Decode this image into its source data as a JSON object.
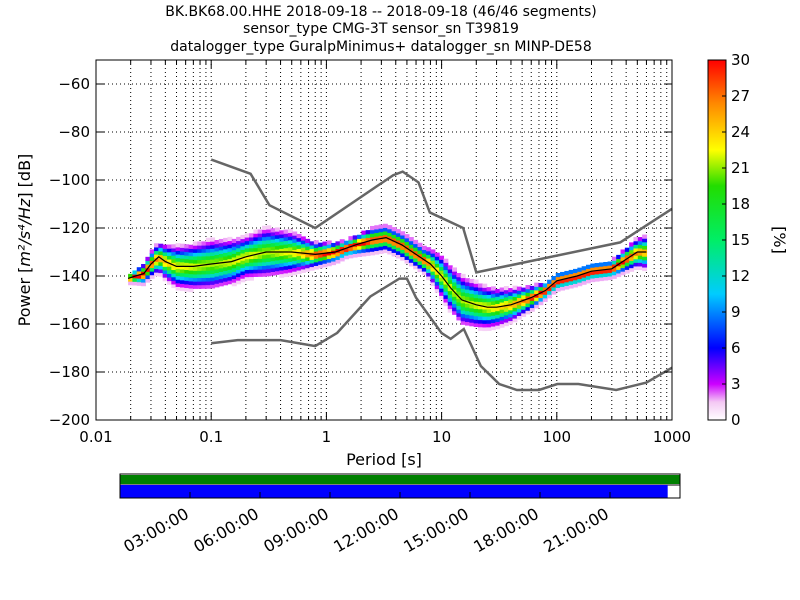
{
  "chart_data": {
    "type": "heatmap",
    "title_lines": [
      "BK.BK68.00.HHE   2018-09-18 -- 2018-09-18  (46/46 segments)",
      "sensor_type CMG-3T sensor_sn T39819",
      "datalogger_type GuralpMinimus+ datalogger_sn MINP-DE58"
    ],
    "xlabel": "Period [s]",
    "ylabel_prefix": "Power [",
    "ylabel_math": "m²/s⁴/Hz",
    "ylabel_suffix": "] [dB]",
    "x_scale": "log",
    "xlim": [
      0.01,
      1000
    ],
    "ylim": [
      -200,
      -50
    ],
    "x_tick_labels": [
      "0.01",
      "0.1",
      "1",
      "10",
      "100",
      "1000"
    ],
    "y_tick_labels": [
      "−60",
      "−80",
      "−100",
      "−120",
      "−140",
      "−160",
      "−180",
      "−200"
    ],
    "grid": true,
    "colorbar": {
      "label": "[%]",
      "range": [
        0,
        30
      ],
      "tick_labels": [
        "0",
        "3",
        "6",
        "9",
        "12",
        "15",
        "18",
        "21",
        "24",
        "27",
        "30"
      ]
    },
    "noise_models": [
      {
        "name": "NHNM",
        "points": [
          [
            0.1,
            -91.5
          ],
          [
            0.22,
            -97.4
          ],
          [
            0.32,
            -110.5
          ],
          [
            0.8,
            -120
          ],
          [
            3.8,
            -98
          ],
          [
            4.6,
            -96.5
          ],
          [
            6.3,
            -101
          ],
          [
            7.9,
            -113.5
          ],
          [
            15.4,
            -120
          ],
          [
            20,
            -138.5
          ],
          [
            354.8,
            -126
          ],
          [
            1000,
            -112
          ]
        ]
      },
      {
        "name": "NLNM",
        "points": [
          [
            0.1,
            -168
          ],
          [
            0.17,
            -166.7
          ],
          [
            0.4,
            -166.7
          ],
          [
            0.8,
            -169.2
          ],
          [
            1.24,
            -163.7
          ],
          [
            2.4,
            -148.6
          ],
          [
            4.3,
            -141.1
          ],
          [
            5,
            -141.1
          ],
          [
            6,
            -149
          ],
          [
            10,
            -163.8
          ],
          [
            12,
            -166.2
          ],
          [
            15.6,
            -162.1
          ],
          [
            21.9,
            -177.5
          ],
          [
            31.6,
            -185
          ],
          [
            45,
            -187.5
          ],
          [
            70,
            -187.5
          ],
          [
            101,
            -185
          ],
          [
            154,
            -185
          ],
          [
            328,
            -187.5
          ],
          [
            600,
            -184.4
          ],
          [
            1000,
            -178.2
          ]
        ]
      }
    ],
    "mode_curve": [
      [
        0.019,
        -141
      ],
      [
        0.022,
        -140
      ],
      [
        0.026,
        -139
      ],
      [
        0.03,
        -135
      ],
      [
        0.035,
        -132
      ],
      [
        0.04,
        -134
      ],
      [
        0.05,
        -136
      ],
      [
        0.07,
        -136
      ],
      [
        0.1,
        -135
      ],
      [
        0.15,
        -134
      ],
      [
        0.2,
        -132
      ],
      [
        0.3,
        -130
      ],
      [
        0.5,
        -130
      ],
      [
        0.8,
        -131
      ],
      [
        1.2,
        -130
      ],
      [
        1.8,
        -127
      ],
      [
        2.5,
        -125
      ],
      [
        3.3,
        -124
      ],
      [
        4.5,
        -127
      ],
      [
        6,
        -131
      ],
      [
        8,
        -135
      ],
      [
        10,
        -140
      ],
      [
        12,
        -145
      ],
      [
        15,
        -150
      ],
      [
        20,
        -152
      ],
      [
        25,
        -153
      ],
      [
        30,
        -153
      ],
      [
        40,
        -152
      ],
      [
        60,
        -149
      ],
      [
        80,
        -146
      ],
      [
        100,
        -142
      ],
      [
        150,
        -140
      ],
      [
        200,
        -138
      ],
      [
        300,
        -137
      ],
      [
        400,
        -133
      ],
      [
        500,
        -130
      ],
      [
        600,
        -130
      ]
    ],
    "spread_db": [
      [
        0.019,
        1
      ],
      [
        0.03,
        3
      ],
      [
        0.05,
        5
      ],
      [
        0.1,
        6
      ],
      [
        0.2,
        5
      ],
      [
        0.3,
        6
      ],
      [
        0.5,
        5
      ],
      [
        0.8,
        3
      ],
      [
        1.5,
        2
      ],
      [
        2.5,
        3
      ],
      [
        4,
        3
      ],
      [
        7,
        3
      ],
      [
        10,
        5
      ],
      [
        15,
        6
      ],
      [
        25,
        5
      ],
      [
        40,
        4
      ],
      [
        80,
        2
      ],
      [
        150,
        2
      ],
      [
        300,
        2
      ],
      [
        600,
        4
      ]
    ]
  },
  "availability": {
    "top_bar_color": "#008000",
    "bottom_bar_color": "#0000ff",
    "bottom_bar_fill_fraction": 0.978,
    "time_labels": [
      "03:00:00",
      "06:00:00",
      "09:00:00",
      "12:00:00",
      "15:00:00",
      "18:00:00",
      "21:00:00"
    ]
  }
}
